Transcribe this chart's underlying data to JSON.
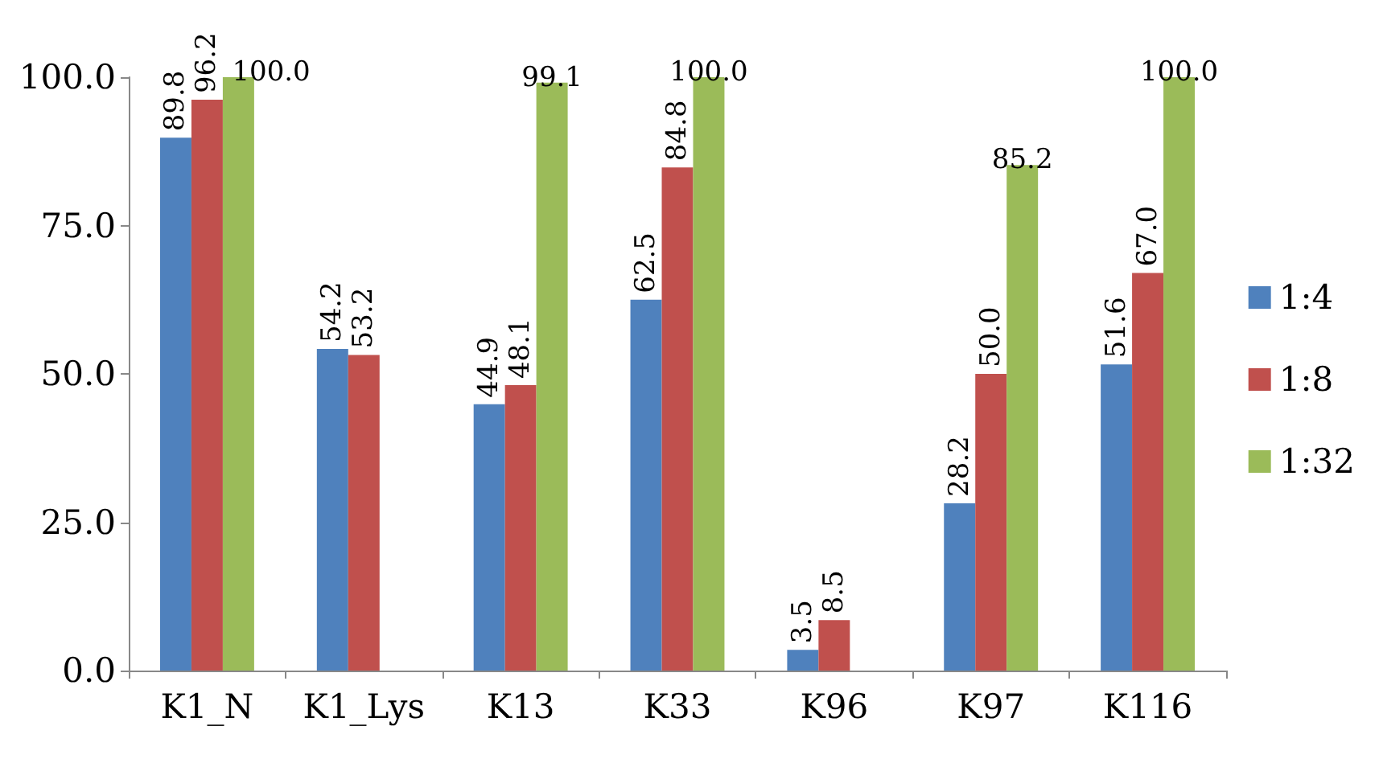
{
  "chart_data": {
    "type": "bar",
    "categories": [
      "K1_N",
      "K1_Lys",
      "K13",
      "K33",
      "K96",
      "K97",
      "K116"
    ],
    "series": [
      {
        "name": "1:4",
        "color": "#4f81bd",
        "values": [
          89.8,
          54.2,
          44.9,
          62.5,
          3.5,
          28.2,
          51.6
        ],
        "value_labels": [
          "89.8",
          "54.2",
          "44.9",
          "62.5",
          "3.5",
          "28.2",
          "51.6"
        ]
      },
      {
        "name": "1:8",
        "color": "#c0504d",
        "values": [
          96.2,
          53.2,
          48.1,
          84.8,
          8.5,
          50.0,
          67.0
        ],
        "value_labels": [
          "96.2",
          "53.2",
          "48.1",
          "84.8",
          "8.5",
          "50.0",
          "67.0"
        ]
      },
      {
        "name": "1:32",
        "color": "#9bbb59",
        "values": [
          100.0,
          null,
          99.1,
          100.0,
          null,
          85.2,
          100.0
        ],
        "value_labels": [
          "100.0",
          null,
          "99.1",
          "100.0",
          null,
          "85.2",
          "100.0"
        ]
      }
    ],
    "ylim": [
      0,
      100
    ],
    "yticks": [
      {
        "value": 0,
        "label": "0.0"
      },
      {
        "value": 25,
        "label": "25.0"
      },
      {
        "value": 50,
        "label": "50.0"
      },
      {
        "value": 75,
        "label": "75.0"
      },
      {
        "value": 100,
        "label": "100.0"
      }
    ],
    "grid": false,
    "legend": "right"
  }
}
